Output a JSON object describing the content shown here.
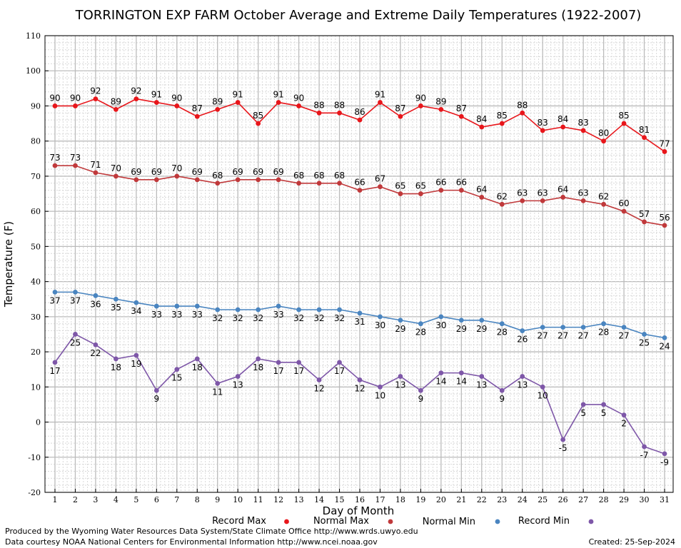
{
  "chart_data": {
    "type": "line",
    "title": "TORRINGTON EXP FARM October Average and Extreme Daily Temperatures (1922-2007)",
    "xlabel": "Day of Month",
    "ylabel": "Temperature (F)",
    "xlim": [
      1,
      31
    ],
    "ylim": [
      -20,
      110
    ],
    "grid": true,
    "legend_position": "bottom",
    "categories": [
      "1",
      "2",
      "3",
      "4",
      "5",
      "6",
      "7",
      "8",
      "9",
      "10",
      "11",
      "12",
      "13",
      "14",
      "15",
      "16",
      "17",
      "18",
      "19",
      "20",
      "21",
      "22",
      "23",
      "24",
      "25",
      "26",
      "27",
      "28",
      "29",
      "30",
      "31"
    ],
    "y_ticks": [
      "-20",
      "-10",
      "0",
      "10",
      "20",
      "30",
      "40",
      "50",
      "60",
      "70",
      "80",
      "90",
      "100",
      "110"
    ],
    "series": [
      {
        "name": "Record Max",
        "color": "#e8161b",
        "label_pos": "above",
        "values": [
          90,
          90,
          92,
          89,
          92,
          91,
          90,
          87,
          89,
          91,
          85,
          91,
          90,
          88,
          88,
          86,
          91,
          87,
          90,
          89,
          87,
          84,
          85,
          88,
          83,
          84,
          83,
          80,
          85,
          81,
          77
        ]
      },
      {
        "name": "Normal Max",
        "color": "#c0393b",
        "label_pos": "above",
        "values": [
          73,
          73,
          71,
          70,
          69,
          69,
          70,
          69,
          68,
          69,
          69,
          69,
          68,
          68,
          68,
          66,
          67,
          65,
          65,
          66,
          66,
          64,
          62,
          63,
          63,
          64,
          63,
          62,
          60,
          57,
          56
        ]
      },
      {
        "name": "Normal Min",
        "color": "#4a85c0",
        "label_pos": "below",
        "values": [
          37,
          37,
          36,
          35,
          34,
          33,
          33,
          33,
          32,
          32,
          32,
          33,
          32,
          32,
          32,
          31,
          30,
          29,
          28,
          30,
          29,
          29,
          28,
          26,
          27,
          27,
          27,
          28,
          27,
          25,
          24
        ]
      },
      {
        "name": "Record Min",
        "color": "#7e57a8",
        "label_pos": "below",
        "values": [
          17,
          25,
          22,
          18,
          19,
          9,
          15,
          18,
          11,
          13,
          18,
          17,
          17,
          12,
          17,
          12,
          10,
          13,
          9,
          14,
          14,
          13,
          9,
          13,
          10,
          -5,
          5,
          5,
          2,
          -7,
          -9
        ]
      }
    ]
  },
  "footer": {
    "line1": "Produced by the Wyoming Water Resources Data System/State Climate Office http://www.wrds.uwyo.edu",
    "line2": "Data courtesy NOAA National Centers for Environmental Information http://www.ncei.noaa.gov",
    "created": "Created:  25-Sep-2024"
  }
}
